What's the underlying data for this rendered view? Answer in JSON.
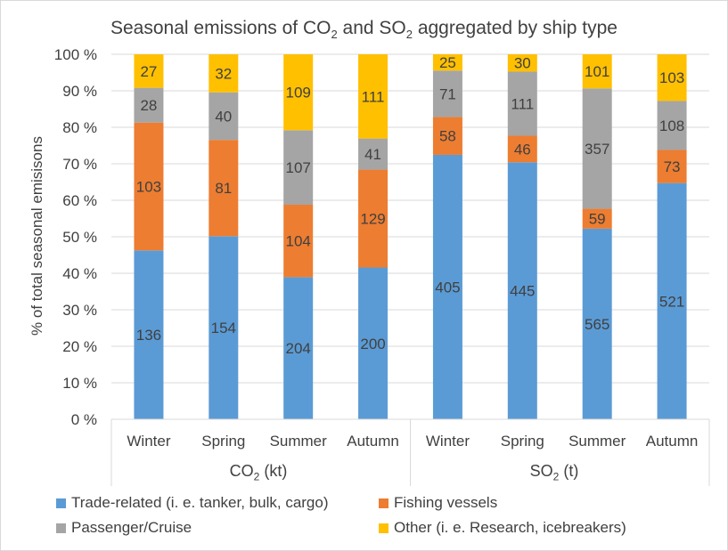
{
  "chart_data": {
    "type": "bar",
    "stacked": true,
    "normalized": true,
    "title_parts": {
      "t1": "Seasonal emissions of CO",
      "s1": "2",
      "t2": " and SO",
      "s2": "2",
      "t3": " aggregated by ship type"
    },
    "ylabel": "% of total seasonal emisisons",
    "ylim": [
      0,
      100
    ],
    "yticks": [
      0,
      10,
      20,
      30,
      40,
      50,
      60,
      70,
      80,
      90,
      100
    ],
    "ytick_labels": [
      "0 %",
      "10 %",
      "20 %",
      "30 %",
      "40 %",
      "50 %",
      "60 %",
      "70 %",
      "80 %",
      "90 %",
      "100 %"
    ],
    "categories": [
      "Winter",
      "Spring",
      "Summer",
      "Autumn",
      "Winter",
      "Spring",
      "Summer",
      "Autumn"
    ],
    "groups": [
      {
        "label_main": "CO",
        "label_sub": "2",
        "label_unit": " (kt)",
        "span": [
          0,
          3
        ]
      },
      {
        "label_main": "SO",
        "label_sub": "2",
        "label_unit": " (t)",
        "span": [
          4,
          7
        ]
      }
    ],
    "series": [
      {
        "name": "Trade-related (i. e. tanker, bulk, cargo)",
        "color": "#5b9bd5",
        "values": [
          136,
          154,
          204,
          200,
          405,
          445,
          565,
          521
        ]
      },
      {
        "name": "Fishing vessels",
        "color": "#ed7d31",
        "values": [
          103,
          81,
          104,
          129,
          58,
          46,
          59,
          73
        ]
      },
      {
        "name": "Passenger/Cruise",
        "color": "#a5a5a5",
        "values": [
          28,
          40,
          107,
          41,
          71,
          111,
          357,
          108
        ]
      },
      {
        "name": "Other (i. e. Research, icebreakers)",
        "color": "#ffc000",
        "values": [
          27,
          32,
          109,
          111,
          25,
          30,
          101,
          103
        ]
      }
    ]
  }
}
